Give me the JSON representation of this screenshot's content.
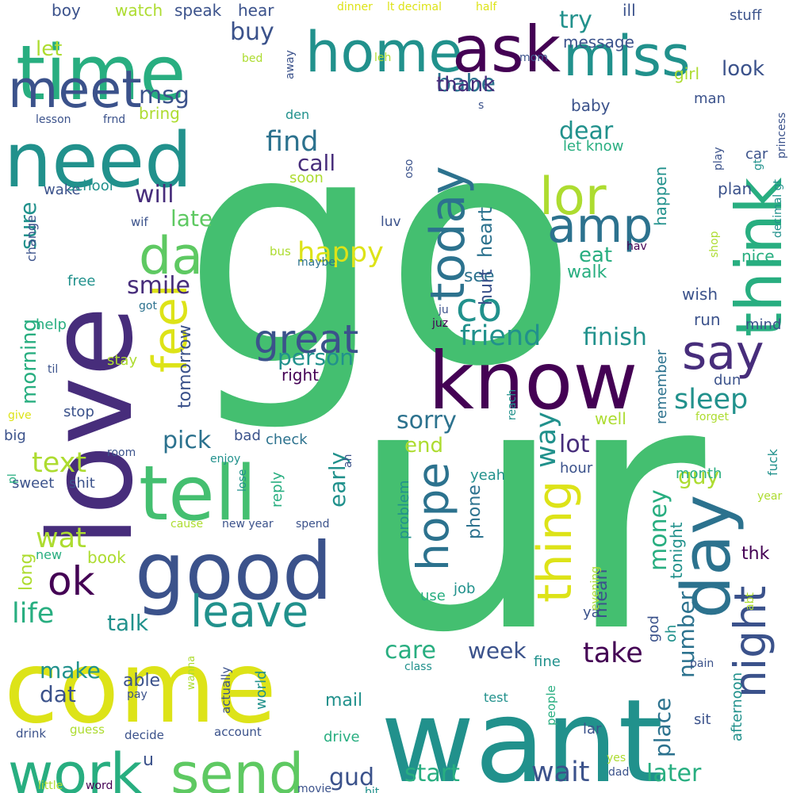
{
  "palette": {
    "background": "#ffffff",
    "dark_purple": "#440154",
    "indigo": "#472d7b",
    "blue": "#3b528b",
    "steel_blue": "#2c728e",
    "teal": "#21918c",
    "sea_green": "#28ae80",
    "green": "#44bf70",
    "lime": "#5ec962",
    "yellow_green": "#addc30",
    "yellow": "#dde318"
  },
  "words": [
    "go",
    "ur",
    "love",
    "come",
    "want",
    "know",
    "time",
    "need",
    "good",
    "tell",
    "home",
    "ask",
    "miss",
    "think",
    "day",
    "send",
    "work",
    "meet",
    "lor",
    "amp",
    "today",
    "say",
    "da",
    "great",
    "feel",
    "co",
    "hope",
    "thing",
    "night",
    "leave",
    "ok",
    "happy",
    "smile",
    "sleep",
    "msg",
    "buy",
    "try",
    "babe",
    "find",
    "dear",
    "call",
    "will",
    "late",
    "sure",
    "morning",
    "text",
    "wat",
    "life",
    "friend",
    "finish",
    "person",
    "right",
    "sorry",
    "way",
    "pick",
    "tomorrow",
    "lot",
    "money",
    "care",
    "take",
    "wait",
    "later",
    "start",
    "gud",
    "talk",
    "make",
    "dat",
    "long",
    "mail",
    "week",
    "number",
    "thk",
    "mean",
    "place",
    "eat",
    "walk",
    "see",
    "end",
    "hurt",
    "heart",
    "early",
    "phone",
    "guy",
    "tonight",
    "let",
    "boy",
    "watch",
    "speak",
    "hear",
    "ill",
    "stuff",
    "message",
    "thank",
    "look",
    "girl",
    "man",
    "baby",
    "let know",
    "car",
    "plan",
    "happen",
    "nice",
    "wish",
    "run",
    "mind",
    "dun",
    "remember",
    "bring",
    "lesson",
    "frnd",
    "den",
    "soon",
    "wake",
    "school",
    "wif",
    "change",
    "bus",
    "maybe",
    "luv",
    "hav",
    "free",
    "help",
    "stay",
    "til",
    "give",
    "stop",
    "big",
    "check",
    "bad",
    "room",
    "enjoy",
    "sweet",
    "shit",
    "reply",
    "lose",
    "cause",
    "new year",
    "spend",
    "new",
    "book",
    "problem",
    "job",
    "use",
    "yeah",
    "hour",
    "well",
    "forget",
    "fuck",
    "year",
    "month",
    "ya",
    "god",
    "oh",
    "fine",
    "pain",
    "class",
    "evening",
    "abt",
    "able",
    "pay",
    "world",
    "actually",
    "account",
    "decide",
    "guess",
    "drink",
    "u",
    "wanna",
    "people",
    "test",
    "sit",
    "lar",
    "yes",
    "dad",
    "afternoon",
    "bit",
    "word",
    "little",
    "movie",
    "drive",
    "dinner",
    "lt decimal",
    "half",
    "leh",
    "mom",
    "bed",
    "away",
    "princess",
    "gt",
    "decimal gt",
    "play",
    "shop",
    "reach",
    "ah",
    "s",
    "oso",
    "got",
    "ju",
    "juz",
    "pl"
  ]
}
